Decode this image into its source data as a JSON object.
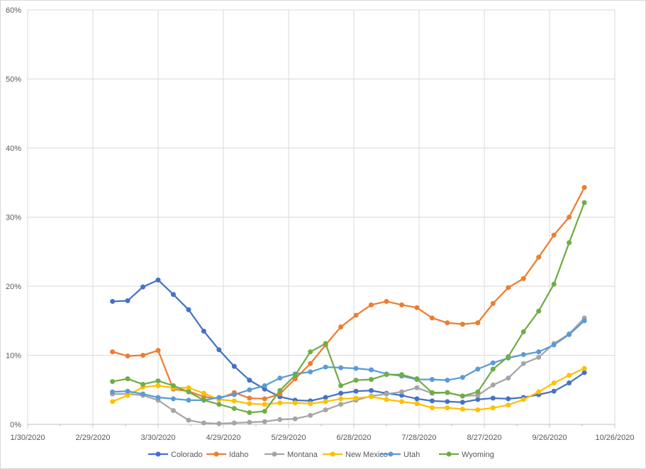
{
  "chart_data": {
    "type": "line",
    "title": "",
    "xlabel": "",
    "ylabel": "",
    "ylim": [
      0,
      60
    ],
    "y_ticks": [
      "0%",
      "10%",
      "20%",
      "30%",
      "40%",
      "50%",
      "60%"
    ],
    "x_range": [
      "2020-01-30",
      "2020-10-26"
    ],
    "x_ticks": [
      "1/30/2020",
      "2/29/2020",
      "3/30/2020",
      "4/29/2020",
      "5/29/2020",
      "6/28/2020",
      "7/28/2020",
      "8/27/2020",
      "9/26/2020",
      "10/26/2020"
    ],
    "grid": true,
    "legend_position": "bottom",
    "x": [
      "2020-03-09",
      "2020-03-16",
      "2020-03-23",
      "2020-03-30",
      "2020-04-06",
      "2020-04-13",
      "2020-04-20",
      "2020-04-27",
      "2020-05-04",
      "2020-05-11",
      "2020-05-18",
      "2020-05-25",
      "2020-06-01",
      "2020-06-08",
      "2020-06-15",
      "2020-06-22",
      "2020-06-29",
      "2020-07-06",
      "2020-07-13",
      "2020-07-20",
      "2020-07-27",
      "2020-08-03",
      "2020-08-10",
      "2020-08-17",
      "2020-08-24",
      "2020-08-31",
      "2020-09-07",
      "2020-09-14",
      "2020-09-21",
      "2020-09-28",
      "2020-10-05",
      "2020-10-12"
    ],
    "series": [
      {
        "name": "Colorado",
        "color": "#4472C4",
        "values": [
          17.8,
          17.9,
          19.9,
          20.9,
          18.8,
          16.6,
          13.5,
          10.8,
          8.4,
          6.4,
          5.1,
          4.0,
          3.5,
          3.4,
          3.9,
          4.5,
          4.8,
          4.9,
          4.5,
          4.2,
          3.7,
          3.4,
          3.3,
          3.2,
          3.6,
          3.8,
          3.7,
          3.9,
          4.3,
          4.8,
          6.0,
          7.5
        ]
      },
      {
        "name": "Idaho",
        "color": "#ED7D31",
        "values": [
          10.5,
          9.9,
          10.0,
          10.7,
          5.1,
          4.8,
          4.0,
          3.7,
          4.6,
          3.8,
          3.7,
          4.4,
          6.6,
          8.8,
          11.5,
          14.1,
          15.8,
          17.3,
          17.8,
          17.3,
          16.9,
          15.4,
          14.7,
          14.5,
          14.7,
          17.5,
          19.8,
          21.1,
          24.2,
          27.4,
          30.0,
          34.3
        ]
      },
      {
        "name": "Montana",
        "color": "#A5A5A5",
        "values": [
          4.4,
          4.4,
          4.2,
          3.5,
          2.0,
          0.6,
          0.2,
          0.1,
          0.2,
          0.3,
          0.4,
          0.7,
          0.8,
          1.3,
          2.1,
          2.9,
          3.5,
          4.1,
          4.4,
          4.7,
          5.3,
          4.5,
          4.6,
          4.1,
          4.2,
          5.7,
          6.7,
          8.8,
          9.7,
          11.7,
          13.1,
          15.4
        ]
      },
      {
        "name": "New Mexico",
        "color": "#FFC000",
        "values": [
          3.3,
          4.2,
          5.4,
          5.6,
          5.3,
          5.3,
          4.5,
          3.6,
          3.4,
          3.0,
          2.9,
          3.1,
          3.1,
          3.0,
          3.3,
          3.7,
          3.8,
          4.0,
          3.6,
          3.3,
          3.0,
          2.4,
          2.4,
          2.2,
          2.1,
          2.4,
          2.8,
          3.6,
          4.7,
          6.0,
          7.1,
          8.1
        ]
      },
      {
        "name": "Utah",
        "color": "#5B9BD5",
        "values": [
          4.7,
          4.8,
          4.4,
          3.9,
          3.7,
          3.5,
          3.5,
          3.9,
          4.3,
          5.0,
          5.6,
          6.7,
          7.3,
          7.6,
          8.3,
          8.2,
          8.1,
          7.9,
          7.3,
          7.0,
          6.5,
          6.5,
          6.4,
          6.8,
          8.0,
          8.9,
          9.6,
          10.1,
          10.5,
          11.5,
          13.0,
          15.0
        ]
      },
      {
        "name": "Wyoming",
        "color": "#70AD47",
        "values": [
          6.2,
          6.6,
          5.8,
          6.3,
          5.6,
          4.7,
          3.5,
          2.9,
          2.3,
          1.7,
          1.9,
          4.9,
          7.1,
          10.5,
          11.7,
          5.6,
          6.4,
          6.5,
          7.2,
          7.2,
          6.6,
          4.6,
          4.6,
          4.1,
          4.7,
          8.0,
          9.8,
          13.4,
          16.4,
          20.3,
          26.3,
          32.1
        ]
      }
    ]
  }
}
